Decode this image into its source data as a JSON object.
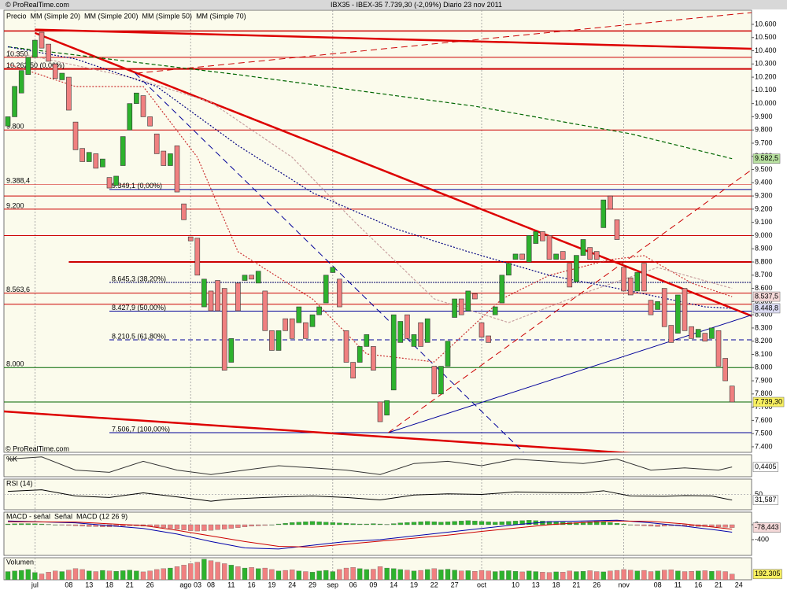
{
  "chart_data": {
    "type": "candlestick",
    "title": "IBX35 - IBEX-35    7.739,30 (-2,09%)    Diario  23 nov 2011",
    "watermark": "© ProRealTime.com",
    "name": "Precio",
    "categories": [
      null,
      null,
      null,
      null,
      "jul",
      null,
      null,
      null,
      null,
      "08",
      null,
      null,
      "13",
      null,
      null,
      "18",
      null,
      null,
      "21",
      null,
      null,
      "26",
      null,
      null,
      null,
      null,
      null,
      "ago 03",
      null,
      null,
      "08",
      null,
      null,
      "11",
      null,
      null,
      "16",
      null,
      null,
      "19",
      null,
      null,
      "24",
      null,
      null,
      "29",
      null,
      null,
      "sep",
      null,
      null,
      "06",
      null,
      null,
      "09",
      null,
      null,
      "14",
      null,
      null,
      "19",
      null,
      null,
      "22",
      null,
      null,
      "27",
      null,
      null,
      null,
      "oct",
      null,
      null,
      null,
      null,
      "10",
      null,
      null,
      "13",
      null,
      null,
      "18",
      null,
      null,
      "21",
      null,
      null,
      "26",
      null,
      null,
      null,
      "nov",
      null,
      null,
      null,
      null,
      "08",
      null,
      null,
      "11",
      null,
      null,
      "16",
      null,
      null,
      "21",
      null,
      null,
      "24"
    ],
    "open": [
      9830,
      9900,
      10080,
      10220,
      10350,
      10540,
      10450,
      10300,
      10180,
      10200,
      9860,
      9660,
      9560,
      9620,
      9520,
      9440,
      9380,
      9530,
      9800,
      10000,
      10060,
      9900,
      9770,
      9640,
      9530,
      9680,
      9240,
      8990,
      8980,
      8460,
      8580,
      8660,
      8600,
      8040,
      8640,
      8660,
      8700,
      8640,
      8580,
      8280,
      8130,
      8370,
      8370,
      8340,
      8340,
      8310,
      8400,
      8490,
      8720,
      8670,
      8280,
      8040,
      8040,
      8160,
      8160,
      7740,
      7640,
      7830,
      8190,
      8400,
      8160,
      8340,
      8190,
      8010,
      7800,
      8010,
      8380,
      8520,
      8430,
      8560,
      8340,
      8240,
      8400,
      8490,
      8700,
      8820,
      8860,
      8800,
      8940,
      9030,
      9000,
      8820,
      8880,
      8790,
      8650,
      8850,
      8910,
      8880,
      9060,
      9300,
      9120,
      8760,
      8680,
      8580,
      8790,
      8510,
      8440,
      8600,
      8320,
      8260,
      8600,
      8310,
      8230,
      8260,
      8220,
      8280,
      8070,
      7860,
      null
    ],
    "close": [
      9900,
      10130,
      10250,
      10350,
      10480,
      10420,
      10320,
      10190,
      10230,
      9950,
      9650,
      9560,
      9630,
      9510,
      9580,
      9360,
      9450,
      9750,
      10000,
      10080,
      9900,
      9830,
      9620,
      9530,
      9620,
      9330,
      9120,
      8960,
      8700,
      8670,
      8430,
      8430,
      7980,
      8220,
      8430,
      8700,
      8670,
      8730,
      8280,
      8130,
      8280,
      8280,
      8220,
      8460,
      8220,
      8400,
      8460,
      8700,
      8760,
      8460,
      8040,
      7920,
      8160,
      8250,
      7980,
      7590,
      7750,
      8400,
      8350,
      8220,
      8250,
      8160,
      8370,
      7800,
      8010,
      8200,
      8520,
      8400,
      8580,
      8520,
      8230,
      8190,
      8460,
      8700,
      8790,
      8860,
      8820,
      9000,
      9030,
      8960,
      8820,
      8860,
      8820,
      8610,
      8850,
      8970,
      8820,
      8820,
      9270,
      9200,
      8970,
      8580,
      8550,
      8720,
      8580,
      8400,
      8500,
      8310,
      8190,
      8550,
      8280,
      8220,
      8290,
      8200,
      8300,
      8010,
      7900,
      7739.3,
      null
    ],
    "up_color": "#2db22d",
    "down_color": "#f08080",
    "ylim": [
      7358,
      10707
    ],
    "yticks": [
      {
        "value": 10600,
        "label": "10.600"
      },
      {
        "value": 10500,
        "label": "10.500"
      },
      {
        "value": 10400,
        "label": "10.400"
      },
      {
        "value": 10300,
        "label": "10.300"
      },
      {
        "value": 10200,
        "label": "10.200"
      },
      {
        "value": 10100,
        "label": "10.100"
      },
      {
        "value": 10000,
        "label": "10.000"
      },
      {
        "value": 9900,
        "label": "9.900"
      },
      {
        "value": 9800,
        "label": "9.800"
      },
      {
        "value": 9700,
        "label": "9.700"
      },
      {
        "value": 9600,
        "label": "9.600"
      },
      {
        "value": 9500,
        "label": "9.500"
      },
      {
        "value": 9400,
        "label": "9.400"
      },
      {
        "value": 9300,
        "label": "9.300"
      },
      {
        "value": 9200,
        "label": "9.200"
      },
      {
        "value": 9100,
        "label": "9.100"
      },
      {
        "value": 9000,
        "label": "9.000"
      },
      {
        "value": 8900,
        "label": "8.900"
      },
      {
        "value": 8800,
        "label": "8.800"
      },
      {
        "value": 8700,
        "label": "8.700"
      },
      {
        "value": 8600,
        "label": "8.600"
      },
      {
        "value": 8500,
        "label": "8.500"
      },
      {
        "value": 8400,
        "label": "8.400"
      },
      {
        "value": 8300,
        "label": "8.300"
      },
      {
        "value": 8200,
        "label": "8.200"
      },
      {
        "value": 8100,
        "label": "8.100"
      },
      {
        "value": 8000,
        "label": "8.000"
      },
      {
        "value": 7900,
        "label": "7.900"
      },
      {
        "value": 7800,
        "label": "7.800"
      },
      {
        "value": 7700,
        "label": "7.700"
      },
      {
        "value": 7600,
        "label": "7.600"
      },
      {
        "value": 7500,
        "label": "7.500"
      },
      {
        "value": 7400,
        "label": "7.400"
      }
    ],
    "levels": [
      {
        "value": 10550,
        "color": "#cc0000",
        "width": 1.5
      },
      {
        "value": 10350,
        "label": "10.350",
        "color": "#cc0000"
      },
      {
        "value": 10262.5,
        "label": "10.262,50 (0,00%)",
        "color": "#cc0000",
        "width": 2
      },
      {
        "value": 9800,
        "label": "9.800",
        "color": "#cc0000"
      },
      {
        "value": 9388.4,
        "label": "9.388,4",
        "color": "#cc0000",
        "width": 0.5
      },
      {
        "value": 9349.1,
        "label": "9.349,1 (0,00%)",
        "color": "#000099",
        "from": 15
      },
      {
        "value": 9300,
        "color": "#cc0000"
      },
      {
        "value": 9200,
        "label": "9.200",
        "color": "#cc0000"
      },
      {
        "value": 9000,
        "color": "#cc0000"
      },
      {
        "value": 8800,
        "color": "#cc0000",
        "width": 2,
        "from": 9
      },
      {
        "value": 8645.3,
        "label": "8.645,3 (38,20%)",
        "color": "#000066",
        "dash": "2,1",
        "from": 15
      },
      {
        "value": 8563.6,
        "label": "8.563,6",
        "color": "#cc0000"
      },
      {
        "value": 8480,
        "color": "#cc0000"
      },
      {
        "value": 8427.9,
        "label": "8.427,9 (50,00%)",
        "color": "#000099",
        "from": 15
      },
      {
        "value": 8210.5,
        "label": "8.210,5 (61,80%)",
        "color": "#000099",
        "dash": "6,4",
        "from": 15
      },
      {
        "value": 8000,
        "label": "8.000",
        "color": "#006600"
      },
      {
        "value": 7739.3,
        "color": "#006600"
      },
      {
        "value": 7506.7,
        "label": "7.506,7 (100,00%)",
        "color": "#000099",
        "from": 15
      }
    ],
    "trendlines": [
      {
        "color": "#dd0000",
        "width": 2.5,
        "x": [
          4,
          110
        ],
        "y": [
          10560,
          10415
        ]
      },
      {
        "color": "#dd0000",
        "width": 2.5,
        "x": [
          4,
          110
        ],
        "y": [
          10535,
          8389
        ]
      },
      {
        "color": "#dd0000",
        "width": 2.5,
        "x": [
          -0.6,
          93.6
        ],
        "y": [
          7668,
          7346
        ]
      },
      {
        "color": "#000099",
        "width": 1,
        "x": [
          56.2,
          110
        ],
        "y": [
          7507,
          8400
        ]
      },
      {
        "color": "#cc0000",
        "width": 1,
        "dash": "8,5",
        "x": [
          56.2,
          110
        ],
        "y": [
          7507,
          9503
        ]
      },
      {
        "color": "#000099",
        "width": 1,
        "dash": "8,5",
        "x": [
          18.8,
          76.2
        ],
        "y": [
          10230,
          7358
        ]
      },
      {
        "color": "#cc0000",
        "width": 1,
        "dash": "8,5",
        "x": [
          19,
          110
        ],
        "y": [
          10230,
          10690
        ]
      }
    ],
    "series": [
      {
        "name": "MM (Simple 20)",
        "color": "#cc3333",
        "dash": "2,2",
        "x": [
          0,
          10,
          20,
          28,
          34,
          45,
          53,
          63,
          73,
          80,
          89,
          94,
          101,
          107
        ],
        "values": [
          10300,
          10129,
          10129,
          9593,
          8878,
          8520,
          8103,
          8043,
          8520,
          8699,
          8818,
          8848,
          8640,
          8537.5
        ]
      },
      {
        "name": "MM (Simple 200)",
        "color": "#006600",
        "dash": "5,3",
        "x": [
          0,
          34,
          69,
          92,
          107
        ],
        "values": [
          10430,
          10219,
          9980,
          9771,
          9582.5
        ]
      },
      {
        "name": "MM (Simple 50)",
        "color": "#c8a0a0",
        "dash": "3,2",
        "x": [
          0,
          19,
          30,
          42,
          51,
          63,
          74,
          86,
          96,
          107
        ],
        "values": [
          10400,
          10189,
          10010,
          9593,
          9116,
          8520,
          8341,
          8580,
          8758,
          8600
        ]
      },
      {
        "name": "MM (Simple 70)",
        "color": "#000080",
        "dash": "2,2",
        "x": [
          0,
          10,
          22,
          34,
          45,
          57,
          68,
          80,
          92,
          103,
          107
        ],
        "values": [
          10430,
          10338,
          10129,
          9682,
          9325,
          9056,
          8878,
          8699,
          8580,
          8460,
          8448.8
        ]
      }
    ],
    "right_labels": [
      {
        "value": 9582.5,
        "label": "9.582,5",
        "color": "#b8e0a0"
      },
      {
        "value": 8537.5,
        "label": "8.537,5",
        "color": "#f4d8d8"
      },
      {
        "value": 8448.8,
        "label": "8.448,8",
        "color": "#dcdcf4"
      },
      {
        "value": 7739.3,
        "label": "7.739,30",
        "color": "#f8f060"
      }
    ],
    "stochastic": {
      "title": "%K",
      "color": "#333333",
      "ylim": [
        0,
        1
      ],
      "x": [
        0,
        5,
        10,
        15,
        20,
        25,
        30,
        35,
        40,
        45,
        50,
        55,
        60,
        65,
        70,
        75,
        80,
        85,
        90,
        95,
        100,
        105,
        107
      ],
      "values": [
        0.8,
        0.9,
        0.3,
        0.2,
        0.7,
        0.3,
        0.1,
        0.3,
        0.5,
        0.4,
        0.3,
        0.1,
        0.6,
        0.7,
        0.5,
        0.8,
        0.7,
        0.6,
        0.8,
        0.3,
        0.4,
        0.3,
        0.4405
      ],
      "last": {
        "value": 0.4405,
        "label": "0,4405"
      }
    },
    "rsi": {
      "title": "RSI (14)",
      "color": "#000000",
      "ylim": [
        0,
        100
      ],
      "yticks": [
        50
      ],
      "x": [
        0,
        5,
        10,
        15,
        20,
        25,
        30,
        33,
        38,
        45,
        50,
        55,
        60,
        65,
        70,
        75,
        80,
        85,
        88,
        92,
        97,
        100,
        104,
        107
      ],
      "values": [
        60,
        65,
        45,
        40,
        55,
        42,
        28,
        35,
        40,
        45,
        40,
        32,
        48,
        52,
        50,
        58,
        56,
        55,
        62,
        45,
        44,
        46,
        45,
        31.587
      ],
      "last": {
        "value": 31.587,
        "label": "31,587"
      }
    },
    "macd": {
      "ylim": [
        -821,
        337
      ],
      "yticks": [
        0,
        -400
      ],
      "histogram": {
        "name": "MACD - señal",
        "color": "#cc3333",
        "up_color": "#2db22d",
        "down_color": "#f08080",
        "values": [
          20,
          25,
          30,
          30,
          25,
          20,
          10,
          0,
          -10,
          -20,
          -30,
          -40,
          -50,
          -50,
          -60,
          -60,
          -50,
          -40,
          -30,
          -30,
          -40,
          -50,
          -60,
          -80,
          -100,
          -120,
          -140,
          -160,
          -170,
          -160,
          -150,
          -130,
          -120,
          -100,
          -80,
          -60,
          -40,
          -30,
          -20,
          0,
          20,
          40,
          60,
          70,
          80,
          90,
          80,
          70,
          60,
          50,
          40,
          30,
          20,
          20,
          30,
          20,
          10,
          30,
          50,
          60,
          70,
          80,
          90,
          80,
          70,
          80,
          90,
          100,
          110,
          100,
          90,
          80,
          70,
          80,
          90,
          100,
          110,
          120,
          110,
          100,
          90,
          80,
          70,
          60,
          60,
          70,
          80,
          90,
          80,
          60,
          40,
          20,
          0,
          -20,
          -30,
          -40,
          -50,
          -40,
          -30,
          -30,
          -40,
          -40,
          -50,
          -50,
          -50,
          -60,
          -70,
          -78.443,
          null
        ]
      },
      "signal": {
        "name": "Señal",
        "color": "#cc0000",
        "x": [
          0,
          10,
          20,
          25,
          30,
          35,
          40,
          45,
          50,
          55,
          60,
          65,
          70,
          75,
          80,
          85,
          90,
          95,
          100,
          105,
          107
        ],
        "values": [
          80,
          70,
          -20,
          -150,
          -300,
          -450,
          -580,
          -600,
          -520,
          -440,
          -360,
          -280,
          -180,
          -90,
          0,
          60,
          100,
          90,
          20,
          -80,
          -120
        ]
      },
      "line": {
        "name": "MACD (12 26 9)",
        "color": "#0000aa",
        "x": [
          0,
          10,
          20,
          25,
          30,
          35,
          40,
          45,
          50,
          55,
          60,
          65,
          70,
          75,
          80,
          85,
          90,
          95,
          100,
          105,
          107
        ],
        "values": [
          100,
          50,
          -100,
          -250,
          -450,
          -620,
          -650,
          -550,
          -450,
          -400,
          -300,
          -200,
          -100,
          0,
          80,
          100,
          120,
          50,
          -40,
          -150,
          -200
        ]
      },
      "last": {
        "value": -78.443,
        "label": "-78,443"
      }
    },
    "volume": {
      "title": "Volumen",
      "ylim": [
        0,
        750000
      ],
      "values": [
        280000,
        300000,
        320000,
        350000,
        250000,
        200000,
        260000,
        300000,
        280000,
        330000,
        380000,
        350000,
        300000,
        280000,
        320000,
        300000,
        290000,
        310000,
        330000,
        300000,
        270000,
        300000,
        350000,
        380000,
        400000,
        450000,
        500000,
        550000,
        600000,
        700000,
        650000,
        600000,
        550000,
        500000,
        450000,
        400000,
        420000,
        380000,
        400000,
        350000,
        300000,
        320000,
        340000,
        300000,
        280000,
        260000,
        300000,
        320000,
        280000,
        350000,
        400000,
        420000,
        380000,
        350000,
        360000,
        450000,
        400000,
        380000,
        350000,
        330000,
        300000,
        320000,
        350000,
        380000,
        340000,
        360000,
        330000,
        300000,
        310000,
        290000,
        320000,
        300000,
        280000,
        300000,
        310000,
        290000,
        270000,
        300000,
        280000,
        260000,
        250000,
        270000,
        260000,
        300000,
        280000,
        290000,
        310000,
        280000,
        270000,
        300000,
        320000,
        350000,
        330000,
        300000,
        320000,
        280000,
        300000,
        330000,
        340000,
        300000,
        280000,
        290000,
        300000,
        310000,
        290000,
        300000,
        280000,
        192305,
        null
      ],
      "last": {
        "value": 192305,
        "label": "192.305"
      }
    }
  }
}
